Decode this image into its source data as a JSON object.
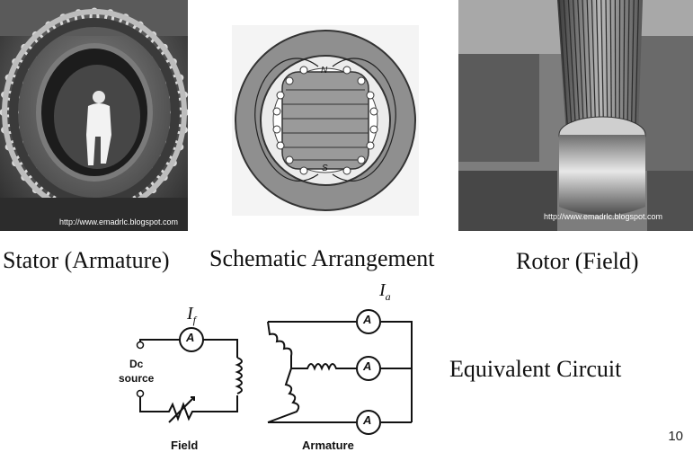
{
  "slide": {
    "page_number": "10"
  },
  "stator": {
    "caption": "Stator (Armature)",
    "watermark": "http://www.emadrlc.blogspot.com"
  },
  "schematic": {
    "caption": "Schematic Arrangement",
    "pole_n": "N",
    "pole_s": "S"
  },
  "rotor": {
    "caption": "Rotor (Field)",
    "watermark": "http://www.emadrlc.blogspot.com"
  },
  "circuit": {
    "caption": "Equivalent Circuit",
    "field_current": "I",
    "field_current_sub": "f",
    "armature_current": "I",
    "armature_current_sub": "a",
    "dc_label": "Dc",
    "source_label": "source",
    "field_label": "Field",
    "armature_label": "Armature",
    "ammeter_symbol": "A"
  }
}
